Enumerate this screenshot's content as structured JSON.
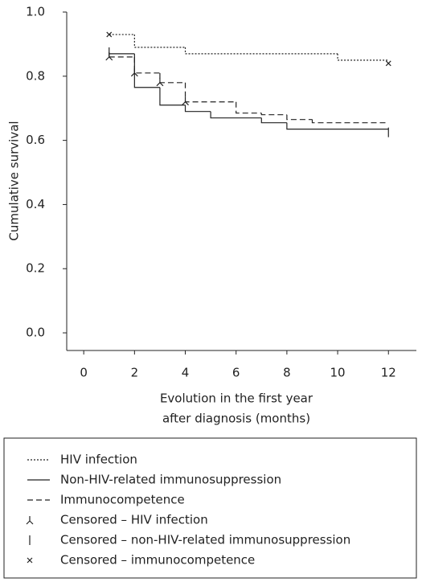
{
  "chart_data": {
    "type": "step",
    "xlabel": [
      "Evolution in the first year",
      "after diagnosis (months)"
    ],
    "ylabel": "Cumulative survival",
    "xlim": [
      -0.67,
      13.1
    ],
    "ylim": [
      -0.055,
      1.0
    ],
    "xticks": [
      0,
      2,
      4,
      6,
      8,
      10,
      12
    ],
    "yticks": [
      {
        "value": 0,
        "label": "0.0"
      },
      0.2,
      0.4,
      0.6,
      0.8,
      {
        "value": 1,
        "label": "1.0"
      }
    ],
    "color": "#222222",
    "series": [
      {
        "name": "HIV infection",
        "style": "dotted",
        "x": [
          1,
          2,
          4,
          10,
          12
        ],
        "values": [
          0.93,
          0.89,
          0.87,
          0.85,
          0.85
        ]
      },
      {
        "name": "Non-HIV-related immunosuppression",
        "style": "solid",
        "x": [
          1,
          2,
          3,
          4,
          5,
          7,
          8,
          12
        ],
        "values": [
          0.87,
          0.765,
          0.71,
          0.69,
          0.67,
          0.655,
          0.635,
          0.635
        ]
      },
      {
        "name": "Immunocompetence",
        "style": "dashed",
        "x": [
          1,
          2,
          3,
          4,
          6,
          7,
          8,
          9,
          12
        ],
        "values": [
          0.86,
          0.81,
          0.78,
          0.72,
          0.685,
          0.68,
          0.665,
          0.655,
          0.655
        ]
      }
    ],
    "censored": [
      {
        "name": "Censored – HIV infection",
        "marker": "tri",
        "x": [
          1,
          2,
          3,
          4
        ],
        "values": [
          0.86,
          0.81,
          0.78,
          0.72
        ]
      },
      {
        "name": "Censored – non-HIV-related immunosuppression",
        "marker": "bar",
        "x": [
          1,
          12
        ],
        "values": [
          0.875,
          0.625
        ]
      },
      {
        "name": "Censored – immunocompetence",
        "marker": "cross",
        "x": [
          1,
          12
        ],
        "values": [
          0.93,
          0.84
        ]
      }
    ]
  }
}
